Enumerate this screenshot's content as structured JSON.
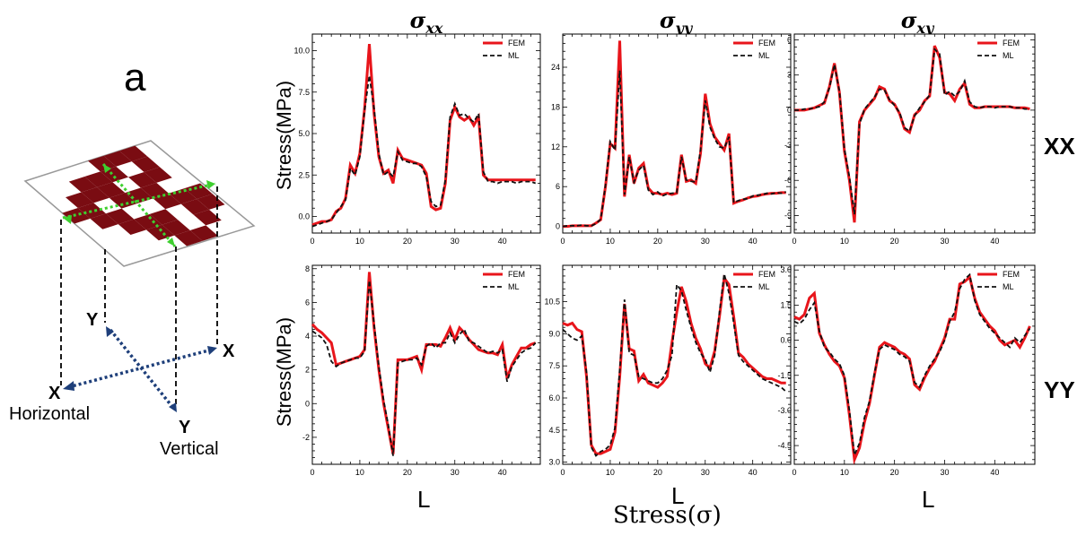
{
  "figure": {
    "panel_letter": "a",
    "diagram": {
      "axis_y_top": "Y",
      "axis_x_right": "X",
      "axis_x_left": "X",
      "axis_y_bottom": "Y",
      "horizontal_label": "Horizontal",
      "vertical_label": "Vertical"
    },
    "col_titles": [
      {
        "base": "σ",
        "sub": "xx"
      },
      {
        "base": "σ",
        "sub": "yy"
      },
      {
        "base": "σ",
        "sub": "xy"
      }
    ],
    "row_labels": [
      "XX",
      "YY"
    ],
    "ylabel": "Stress(MPa)",
    "xlabels": [
      "L",
      "L",
      "L"
    ],
    "bottom_label": "Stress(σ)",
    "colors": {
      "fem": "#e8151b",
      "ml": "#111111",
      "maroon": "#7a0c12"
    }
  },
  "chart_data": [
    {
      "type": "line",
      "xlim": [
        0,
        48
      ],
      "ylim": [
        -1,
        11
      ],
      "xticks": [
        0,
        10,
        20,
        30,
        40
      ],
      "yticks": [
        0.0,
        2.5,
        5.0,
        7.5,
        10.0
      ],
      "ytick_labels": [
        "0.0",
        "2.5",
        "5.0",
        "7.5",
        "10.0"
      ],
      "legend": "top-right",
      "series": [
        {
          "name": "FEM",
          "style": "solid",
          "values": [
            -0.5,
            -0.4,
            -0.3,
            -0.3,
            -0.2,
            0.3,
            0.5,
            1.1,
            3.1,
            2.6,
            3.8,
            6.5,
            10.4,
            6.2,
            3.6,
            2.6,
            2.8,
            2.0,
            4.0,
            3.5,
            3.4,
            3.3,
            3.2,
            3.1,
            2.6,
            0.6,
            0.4,
            0.5,
            2.0,
            5.8,
            6.6,
            6.0,
            5.8,
            6.0,
            5.5,
            6.0,
            2.5,
            2.2,
            2.2,
            2.2,
            2.2,
            2.2,
            2.2,
            2.2,
            2.2,
            2.2,
            2.2,
            2.2
          ]
        },
        {
          "name": "ML",
          "style": "dashed",
          "values": [
            -0.6,
            -0.5,
            -0.4,
            -0.3,
            -0.2,
            0.2,
            0.6,
            1.0,
            2.9,
            2.5,
            3.6,
            6.4,
            8.5,
            6.5,
            3.8,
            2.5,
            2.7,
            2.4,
            3.9,
            3.4,
            3.3,
            3.2,
            3.2,
            3.0,
            2.4,
            0.9,
            0.6,
            0.7,
            2.2,
            6.0,
            6.8,
            6.1,
            6.2,
            5.9,
            5.7,
            6.2,
            2.7,
            2.1,
            2.1,
            2.0,
            2.1,
            2.1,
            2.1,
            2.0,
            2.1,
            2.1,
            2.1,
            2.0
          ]
        }
      ]
    },
    {
      "type": "line",
      "xlim": [
        0,
        48
      ],
      "ylim": [
        -1,
        29
      ],
      "xticks": [
        0,
        10,
        20,
        30,
        40
      ],
      "yticks": [
        0,
        6,
        12,
        18,
        24
      ],
      "ytick_labels": [
        "0",
        "6",
        "12",
        "18",
        "24"
      ],
      "legend": "top-right",
      "series": [
        {
          "name": "FEM",
          "style": "solid",
          "values": [
            0.0,
            0.0,
            0.1,
            0.1,
            0.1,
            0.1,
            0.1,
            0.5,
            1.0,
            6.0,
            12.5,
            11.8,
            28.0,
            4.5,
            10.8,
            6.5,
            8.8,
            9.5,
            5.8,
            5.0,
            5.0,
            4.8,
            5.0,
            4.8,
            5.0,
            10.8,
            6.8,
            7.0,
            6.5,
            11.0,
            20.0,
            15.5,
            13.5,
            12.5,
            11.5,
            14.0,
            3.5,
            3.8,
            4.0,
            4.3,
            4.5,
            4.6,
            4.8,
            4.9,
            5.0,
            5.0,
            5.1,
            5.1
          ]
        },
        {
          "name": "ML",
          "style": "dashed",
          "values": [
            0.0,
            0.1,
            0.1,
            0.1,
            0.2,
            0.1,
            0.1,
            0.4,
            1.1,
            6.2,
            12.8,
            11.5,
            23.5,
            4.8,
            10.5,
            6.7,
            8.5,
            9.2,
            5.5,
            4.8,
            5.2,
            4.6,
            4.9,
            5.0,
            5.1,
            10.5,
            7.0,
            6.8,
            6.7,
            11.5,
            19.0,
            15.0,
            13.2,
            12.0,
            11.8,
            13.5,
            3.6,
            3.9,
            4.1,
            4.2,
            4.6,
            4.7,
            4.8,
            5.0,
            4.9,
            5.1,
            5.0,
            5.2
          ]
        }
      ]
    },
    {
      "type": "line",
      "xlim": [
        0,
        48
      ],
      "ylim": [
        -10.5,
        6.5
      ],
      "xticks": [
        0,
        10,
        20,
        30,
        40
      ],
      "yticks": [
        -9,
        -6,
        -3,
        0,
        3,
        6
      ],
      "ytick_labels": [
        "-9",
        "-6",
        "-3",
        "0",
        "3",
        "6"
      ],
      "legend": "top-right",
      "series": [
        {
          "name": "FEM",
          "style": "solid",
          "values": [
            0.0,
            0.0,
            0.0,
            0.1,
            0.2,
            0.4,
            0.6,
            2.0,
            4.0,
            1.5,
            -3.5,
            -6.0,
            -9.6,
            -1.0,
            0.0,
            0.5,
            1.0,
            2.0,
            1.8,
            0.8,
            0.5,
            -0.3,
            -1.6,
            -1.9,
            -0.4,
            0.0,
            0.8,
            1.2,
            5.5,
            4.5,
            1.5,
            1.4,
            0.8,
            1.8,
            2.3,
            0.5,
            0.2,
            0.2,
            0.3,
            0.3,
            0.3,
            0.3,
            0.3,
            0.3,
            0.2,
            0.2,
            0.2,
            0.1
          ]
        },
        {
          "name": "ML",
          "style": "dashed",
          "values": [
            0.0,
            0.0,
            0.1,
            0.1,
            0.2,
            0.3,
            0.7,
            1.9,
            3.9,
            1.6,
            -3.3,
            -5.7,
            -8.9,
            -1.2,
            0.1,
            0.6,
            1.1,
            1.8,
            1.7,
            0.9,
            0.4,
            -0.2,
            -1.5,
            -1.8,
            -0.5,
            0.2,
            0.7,
            1.3,
            5.2,
            4.8,
            1.3,
            1.6,
            1.2,
            1.6,
            2.5,
            0.7,
            0.3,
            0.2,
            0.3,
            0.3,
            0.2,
            0.3,
            0.3,
            0.3,
            0.2,
            0.2,
            0.1,
            0.1
          ]
        }
      ]
    },
    {
      "type": "line",
      "xlim": [
        0,
        48
      ],
      "ylim": [
        -3.6,
        8.2
      ],
      "xticks": [
        0,
        10,
        20,
        30,
        40
      ],
      "yticks": [
        -2,
        0,
        2,
        4,
        6,
        8
      ],
      "ytick_labels": [
        "-2",
        "0",
        "2",
        "4",
        "6",
        "8"
      ],
      "legend": "top-right",
      "series": [
        {
          "name": "FEM",
          "style": "solid",
          "values": [
            4.7,
            4.4,
            4.2,
            3.9,
            3.6,
            2.3,
            2.4,
            2.5,
            2.6,
            2.7,
            2.8,
            3.2,
            7.8,
            4.5,
            2.0,
            0.0,
            -1.5,
            -3.0,
            2.6,
            2.6,
            2.6,
            2.7,
            2.8,
            2.0,
            3.5,
            3.5,
            3.5,
            3.4,
            3.9,
            4.5,
            3.8,
            4.5,
            4.2,
            3.8,
            3.5,
            3.2,
            3.1,
            3.0,
            3.0,
            2.9,
            3.5,
            1.5,
            2.3,
            2.8,
            3.3,
            3.3,
            3.5,
            3.6
          ]
        },
        {
          "name": "ML",
          "style": "dashed",
          "values": [
            4.3,
            4.1,
            3.9,
            3.5,
            2.5,
            2.2,
            2.4,
            2.5,
            2.6,
            2.7,
            2.7,
            3.1,
            7.3,
            4.7,
            2.2,
            0.2,
            -1.3,
            -3.1,
            2.4,
            2.5,
            2.6,
            2.6,
            2.7,
            2.3,
            3.4,
            3.6,
            3.3,
            3.6,
            3.6,
            4.2,
            3.6,
            4.1,
            4.4,
            3.7,
            3.6,
            3.4,
            3.2,
            3.0,
            3.1,
            3.0,
            3.2,
            1.3,
            2.2,
            2.6,
            3.0,
            3.2,
            3.3,
            3.6
          ]
        }
      ]
    },
    {
      "type": "line",
      "xlim": [
        0,
        48
      ],
      "ylim": [
        2.9,
        12.2
      ],
      "xticks": [
        0,
        10,
        20,
        30,
        40
      ],
      "yticks": [
        3.0,
        4.5,
        6.0,
        7.5,
        9.0,
        10.5
      ],
      "ytick_labels": [
        "3.0",
        "4.5",
        "6.0",
        "7.5",
        "9.0",
        "10.5"
      ],
      "legend": "top-right",
      "series": [
        {
          "name": "FEM",
          "style": "solid",
          "values": [
            9.5,
            9.4,
            9.5,
            9.2,
            9.1,
            7.0,
            3.8,
            3.4,
            3.4,
            3.5,
            3.6,
            4.4,
            7.0,
            10.4,
            8.3,
            8.2,
            6.8,
            7.1,
            6.7,
            6.6,
            6.5,
            6.7,
            7.0,
            8.6,
            10.0,
            11.2,
            10.5,
            9.5,
            8.8,
            8.3,
            7.6,
            7.4,
            8.2,
            9.8,
            11.6,
            11.3,
            9.8,
            8.1,
            7.9,
            7.6,
            7.4,
            7.2,
            7.0,
            6.9,
            6.9,
            6.8,
            6.7,
            6.7
          ]
        },
        {
          "name": "ML",
          "style": "dashed",
          "values": [
            9.2,
            9.0,
            8.8,
            8.7,
            8.9,
            7.2,
            3.7,
            3.3,
            3.5,
            3.6,
            3.8,
            4.6,
            7.3,
            10.6,
            8.1,
            8.0,
            7.0,
            6.9,
            6.8,
            6.7,
            6.7,
            6.9,
            7.3,
            8.0,
            11.3,
            11.0,
            10.1,
            9.3,
            8.6,
            8.1,
            7.8,
            7.2,
            8.0,
            10.0,
            11.8,
            10.9,
            9.5,
            8.0,
            7.7,
            7.5,
            7.3,
            7.1,
            6.9,
            6.8,
            6.7,
            6.6,
            6.5,
            6.3
          ]
        }
      ]
    },
    {
      "type": "line",
      "xlim": [
        0,
        48
      ],
      "ylim": [
        -5.3,
        3.2
      ],
      "xticks": [
        0,
        10,
        20,
        30,
        40
      ],
      "yticks": [
        -4.5,
        -3.0,
        -1.5,
        0.0,
        1.5,
        3.0
      ],
      "ytick_labels": [
        "-4.5",
        "-3.0",
        "-1.5",
        "0.0",
        "1.5",
        "3.0"
      ],
      "legend": "top-right",
      "series": [
        {
          "name": "FEM",
          "style": "solid",
          "values": [
            1.0,
            0.9,
            1.1,
            1.8,
            2.0,
            0.3,
            -0.2,
            -0.6,
            -0.9,
            -1.1,
            -1.6,
            -3.2,
            -5.1,
            -4.6,
            -3.5,
            -2.7,
            -1.5,
            -0.3,
            -0.1,
            -0.2,
            -0.3,
            -0.5,
            -0.6,
            -0.8,
            -1.9,
            -2.1,
            -1.6,
            -1.2,
            -0.9,
            -0.4,
            0.1,
            0.9,
            0.9,
            2.4,
            2.5,
            2.7,
            1.8,
            1.2,
            0.9,
            0.6,
            0.4,
            0.0,
            -0.2,
            -0.1,
            0.0,
            -0.3,
            0.1,
            0.6
          ]
        },
        {
          "name": "ML",
          "style": "dashed",
          "values": [
            0.8,
            0.7,
            0.9,
            1.3,
            1.6,
            0.4,
            -0.3,
            -0.5,
            -0.8,
            -1.0,
            -1.5,
            -3.0,
            -4.9,
            -4.4,
            -3.3,
            -2.6,
            -1.4,
            -0.4,
            -0.2,
            -0.3,
            -0.4,
            -0.6,
            -0.7,
            -0.9,
            -1.8,
            -2.0,
            -1.5,
            -1.1,
            -0.8,
            -0.5,
            0.0,
            0.8,
            1.2,
            2.2,
            2.6,
            2.8,
            1.7,
            1.1,
            0.8,
            0.5,
            0.3,
            0.1,
            -0.1,
            -0.3,
            0.1,
            -0.1,
            0.2,
            0.5
          ]
        }
      ]
    }
  ]
}
